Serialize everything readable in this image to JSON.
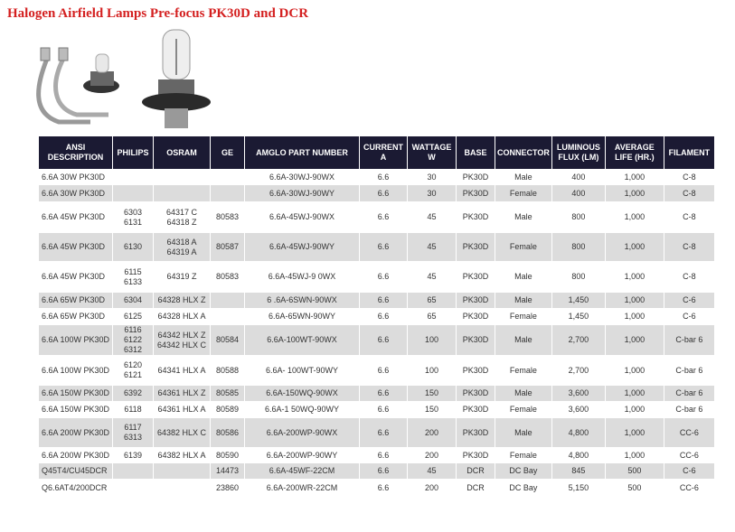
{
  "title": "Halogen Airfield Lamps Pre-focus PK30D and DCR",
  "headers": [
    "ANSI DESCRIPTION",
    "PHILIPS",
    "OSRAM",
    "GE",
    "AMGLO PART NUMBER",
    "CURRENT A",
    "WATTAGE W",
    "BASE",
    "CONNECTOR",
    "LUMINOUS FLUX (LM)",
    "AVERAGE LIFE (HR.)",
    "FILAMENT"
  ],
  "rows": [
    [
      "6.6A 30W PK30D",
      "",
      "",
      "",
      "6.6A-30WJ-90WX",
      "6.6",
      "30",
      "PK30D",
      "Male",
      "400",
      "1,000",
      "C-8"
    ],
    [
      "6.6A 30W PK30D",
      "",
      "",
      "",
      "6.6A-30WJ-90WY",
      "6.6",
      "30",
      "PK30D",
      "Female",
      "400",
      "1,000",
      "C-8"
    ],
    [
      "6.6A 45W PK30D",
      "6303\n6131",
      "64317 C\n64318 Z",
      "80583",
      "6.6A-45WJ-90WX",
      "6.6",
      "45",
      "PK30D",
      "Male",
      "800",
      "1,000",
      "C-8"
    ],
    [
      "6.6A 45W PK30D",
      "6130",
      "64318 A\n64319 A",
      "80587",
      "6.6A-45WJ-90WY",
      "6.6",
      "45",
      "PK30D",
      "Female",
      "800",
      "1,000",
      "C-8"
    ],
    [
      "6.6A 45W PK30D",
      "6115\n6133",
      "64319 Z",
      "80583",
      "6.6A-45WJ-9 0WX",
      "6.6",
      "45",
      "PK30D",
      "Male",
      "800",
      "1,000",
      "C-8"
    ],
    [
      "6.6A 65W PK30D",
      "6304",
      "64328 HLX Z",
      "",
      "6 .6A-6SWN-90WX",
      "6.6",
      "65",
      "PK30D",
      "Male",
      "1,450",
      "1,000",
      "C-6"
    ],
    [
      "6.6A 65W PK30D",
      "6125",
      "64328 HLX A",
      "",
      "6.6A-65WN-90WY",
      "6.6",
      "65",
      "PK30D",
      "Female",
      "1,450",
      "1,000",
      "C-6"
    ],
    [
      "6.6A 100W PK30D",
      "6116\n6122\n6312",
      "64342 HLX Z\n64342 HLX C",
      "80584",
      "6.6A-100WT-90WX",
      "6.6",
      "100",
      "PK30D",
      "Male",
      "2,700",
      "1,000",
      "C-bar 6"
    ],
    [
      "6.6A 100W PK30D",
      "6120\n6121",
      "64341 HLX A",
      "80588",
      "6.6A- 100WT-90WY",
      "6.6",
      "100",
      "PK30D",
      "Female",
      "2,700",
      "1,000",
      "C-bar 6"
    ],
    [
      "6.6A 150W PK30D",
      "6392",
      "64361 HLX Z",
      "80585",
      "6.6A-150WQ-90WX",
      "6.6",
      "150",
      "PK30D",
      "Male",
      "3,600",
      "1,000",
      "C-bar 6"
    ],
    [
      "6.6A 150W PK30D",
      "6118",
      "64361 HLX A",
      "80589",
      "6.6A-1 50WQ-90WY",
      "6.6",
      "150",
      "PK30D",
      "Female",
      "3,600",
      "1,000",
      "C-bar 6"
    ],
    [
      "6.6A 200W PK30D",
      "6117\n6313",
      "64382 HLX C",
      "80586",
      "6.6A-200WP-90WX",
      "6.6",
      "200",
      "PK30D",
      "Male",
      "4,800",
      "1,000",
      "CC-6"
    ],
    [
      "6.6A 200W PK30D",
      "6139",
      "64382 HLX A",
      "80590",
      "6.6A-200WP-90WY",
      "6.6",
      "200",
      "PK30D",
      "Female",
      "4,800",
      "1,000",
      "CC-6"
    ],
    [
      "Q45T4/CU45DCR",
      "",
      "",
      "14473",
      "6.6A-45WF-22CM",
      "6.6",
      "45",
      "DCR",
      "DC Bay",
      "845",
      "500",
      "C-6"
    ],
    [
      "Q6.6AT4/200DCR",
      "",
      "",
      "23860",
      "6.6A-200WR-22CM",
      "6.6",
      "200",
      "DCR",
      "DC Bay",
      "5,150",
      "500",
      "CC-6"
    ]
  ],
  "colors": {
    "title": "#d42020",
    "header_bg": "#1b1a33",
    "stripe": "#dcdcdc"
  }
}
